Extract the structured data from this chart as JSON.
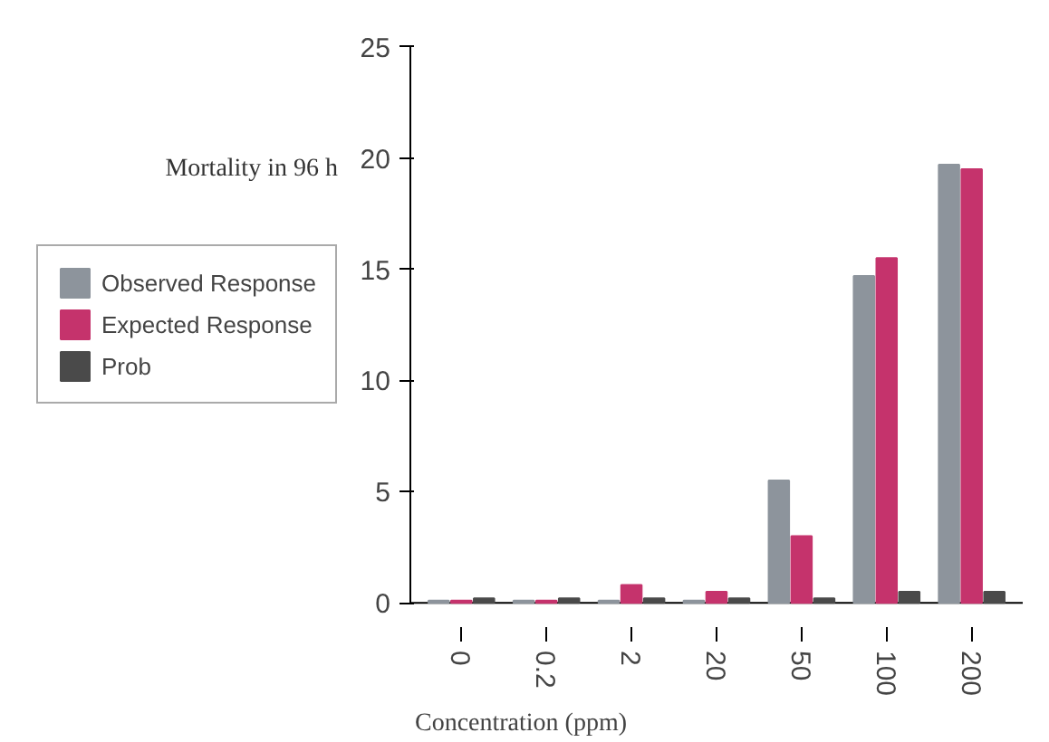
{
  "chart_data": {
    "type": "bar",
    "xlabel": "Concentration (ppm)",
    "ylabel": "Mortality in 96 h",
    "categories": [
      "0",
      "0.2",
      "2",
      "20",
      "50",
      "100",
      "200"
    ],
    "series": [
      {
        "name": "Observed Response",
        "color": "#8d949c",
        "values": [
          0.1,
          0.1,
          0.1,
          0.1,
          5.5,
          14.7,
          19.7
        ]
      },
      {
        "name": "Expected Response",
        "color": "#c5336c",
        "values": [
          0.1,
          0.1,
          0.8,
          0.5,
          3.0,
          15.5,
          19.5
        ]
      },
      {
        "name": "Prob",
        "color": "#4a4a4a",
        "values": [
          0.2,
          0.2,
          0.2,
          0.2,
          0.2,
          0.5,
          0.5
        ]
      }
    ],
    "ylim": [
      0,
      25
    ],
    "yticks": [
      0,
      5,
      10,
      15,
      20,
      25
    ],
    "grid": false,
    "legend": "left"
  }
}
